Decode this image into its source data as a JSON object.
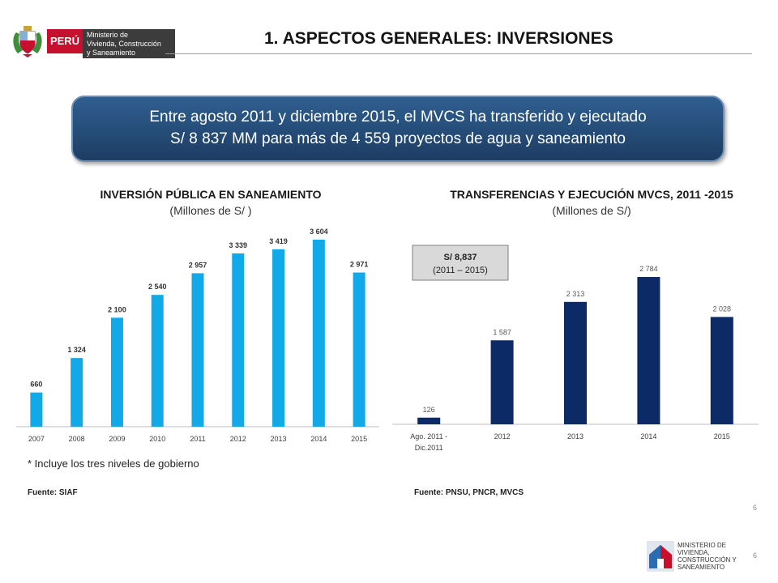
{
  "header": {
    "country": "PERÚ",
    "ministry_lines": [
      "Ministerio de",
      "Vivienda, Construcción",
      "y Saneamiento"
    ],
    "title": "1. ASPECTOS GENERALES: INVERSIONES",
    "colors": {
      "peru_red": "#c8102e",
      "ministry_gray": "#3c3c3c"
    }
  },
  "banner": {
    "line1": "Entre agosto 2011 y diciembre 2015, el MVCS ha transferido y ejecutado",
    "line2": "S/ 8 837 MM para más de 4 559 proyectos de agua y saneamiento"
  },
  "left_chart": {
    "title": "INVERSIÓN PÚBLICA EN SANEAMIENTO",
    "subtitle": "(Millones de S/ )",
    "note": "* Incluye los tres niveles de gobierno",
    "source": "Fuente: SIAF"
  },
  "right_chart": {
    "title": "TRANSFERENCIAS Y EJECUCIÓN MVCS, 2011 -2015",
    "subtitle": "(Millones de S/)",
    "callout_value": "S/ 8,837",
    "callout_period": "(2011 – 2015)",
    "source": "Fuente: PNSU, PNCR, MVCS"
  },
  "chart_data": [
    {
      "type": "bar",
      "categories": [
        "2007",
        "2008",
        "2009",
        "2010",
        "2011",
        "2012",
        "2013",
        "2014",
        "2015"
      ],
      "values": [
        660,
        1324,
        2100,
        2540,
        2957,
        3339,
        3419,
        3604,
        2971
      ],
      "labels": [
        "660",
        "1 324",
        "2 100",
        "2 540",
        "2 957",
        "3 339",
        "3 419",
        "3 604",
        "2 971"
      ],
      "color": "#12a9e8",
      "ylim": [
        0,
        3900
      ]
    },
    {
      "type": "bar",
      "categories": [
        [
          "Ago. 2011 -",
          "Dic.2011"
        ],
        "2012",
        "2013",
        "2014",
        "2015"
      ],
      "values": [
        126,
        1587,
        2313,
        2784,
        2028
      ],
      "labels": [
        "126",
        "1 587",
        "2 313",
        "2 784",
        "2 028"
      ],
      "color": "#0b2a66",
      "ylim": [
        0,
        3060
      ]
    }
  ],
  "page_numbers": [
    "6",
    "6"
  ],
  "footer_logo": {
    "lines": [
      "MINISTERIO DE",
      "VIVIENDA,",
      "CONSTRUCCIÓN Y",
      "SANEAMIENTO"
    ]
  }
}
